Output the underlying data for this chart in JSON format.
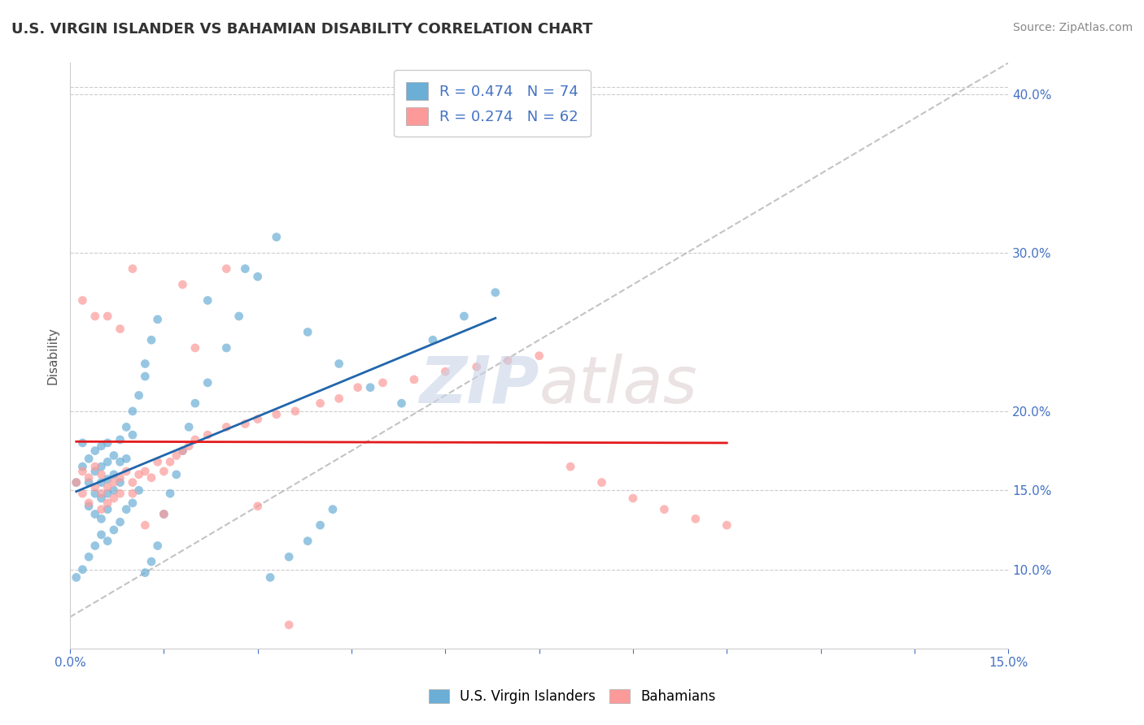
{
  "title": "U.S. VIRGIN ISLANDER VS BAHAMIAN DISABILITY CORRELATION CHART",
  "source_text": "Source: ZipAtlas.com",
  "xlabel": "",
  "ylabel": "Disability",
  "xlim": [
    0.0,
    0.15
  ],
  "ylim": [
    0.05,
    0.42
  ],
  "yticks_right": [
    0.1,
    0.15,
    0.2,
    0.3,
    0.4
  ],
  "ytick_right_labels": [
    "10.0%",
    "15.0%",
    "20.0%",
    "30.0%",
    "40.0%"
  ],
  "blue_color": "#6baed6",
  "pink_color": "#fb9a99",
  "blue_line_color": "#2166ac",
  "pink_line_color": "#e31a1c",
  "gray_line_color": "#aaaaaa",
  "legend_blue_R": "R = 0.474",
  "legend_blue_N": "N = 74",
  "legend_pink_R": "R = 0.274",
  "legend_pink_N": "N = 62",
  "watermark_zip": "ZIP",
  "watermark_atlas": "atlas",
  "blue_scatter_x": [
    0.001,
    0.002,
    0.002,
    0.003,
    0.003,
    0.003,
    0.004,
    0.004,
    0.004,
    0.004,
    0.005,
    0.005,
    0.005,
    0.005,
    0.005,
    0.006,
    0.006,
    0.006,
    0.006,
    0.006,
    0.007,
    0.007,
    0.007,
    0.008,
    0.008,
    0.008,
    0.009,
    0.009,
    0.01,
    0.01,
    0.011,
    0.012,
    0.012,
    0.013,
    0.014,
    0.015,
    0.016,
    0.017,
    0.018,
    0.019,
    0.02,
    0.022,
    0.025,
    0.027,
    0.03,
    0.032,
    0.035,
    0.038,
    0.04,
    0.042,
    0.001,
    0.002,
    0.003,
    0.004,
    0.005,
    0.006,
    0.007,
    0.008,
    0.009,
    0.01,
    0.011,
    0.012,
    0.013,
    0.014,
    0.022,
    0.028,
    0.033,
    0.038,
    0.043,
    0.048,
    0.053,
    0.058,
    0.063,
    0.068
  ],
  "blue_scatter_y": [
    0.155,
    0.18,
    0.165,
    0.17,
    0.155,
    0.14,
    0.175,
    0.162,
    0.148,
    0.135,
    0.178,
    0.165,
    0.155,
    0.145,
    0.132,
    0.18,
    0.168,
    0.157,
    0.148,
    0.138,
    0.172,
    0.16,
    0.15,
    0.182,
    0.168,
    0.155,
    0.19,
    0.17,
    0.2,
    0.185,
    0.21,
    0.222,
    0.23,
    0.245,
    0.258,
    0.135,
    0.148,
    0.16,
    0.175,
    0.19,
    0.205,
    0.218,
    0.24,
    0.26,
    0.285,
    0.095,
    0.108,
    0.118,
    0.128,
    0.138,
    0.095,
    0.1,
    0.108,
    0.115,
    0.122,
    0.118,
    0.125,
    0.13,
    0.138,
    0.142,
    0.15,
    0.098,
    0.105,
    0.115,
    0.27,
    0.29,
    0.31,
    0.25,
    0.23,
    0.215,
    0.205,
    0.245,
    0.26,
    0.275
  ],
  "pink_scatter_x": [
    0.001,
    0.002,
    0.002,
    0.003,
    0.003,
    0.004,
    0.004,
    0.005,
    0.005,
    0.005,
    0.006,
    0.006,
    0.007,
    0.007,
    0.008,
    0.008,
    0.009,
    0.01,
    0.01,
    0.011,
    0.012,
    0.013,
    0.014,
    0.015,
    0.016,
    0.017,
    0.018,
    0.019,
    0.02,
    0.022,
    0.025,
    0.028,
    0.03,
    0.033,
    0.036,
    0.04,
    0.043,
    0.046,
    0.05,
    0.055,
    0.06,
    0.065,
    0.07,
    0.075,
    0.08,
    0.085,
    0.09,
    0.095,
    0.1,
    0.105,
    0.002,
    0.004,
    0.006,
    0.008,
    0.01,
    0.012,
    0.015,
    0.018,
    0.02,
    0.025,
    0.03,
    0.035
  ],
  "pink_scatter_y": [
    0.155,
    0.148,
    0.162,
    0.158,
    0.142,
    0.165,
    0.152,
    0.16,
    0.148,
    0.138,
    0.152,
    0.142,
    0.155,
    0.145,
    0.158,
    0.148,
    0.162,
    0.155,
    0.148,
    0.16,
    0.162,
    0.158,
    0.168,
    0.162,
    0.168,
    0.172,
    0.175,
    0.178,
    0.182,
    0.185,
    0.19,
    0.192,
    0.195,
    0.198,
    0.2,
    0.205,
    0.208,
    0.215,
    0.218,
    0.22,
    0.225,
    0.228,
    0.232,
    0.235,
    0.165,
    0.155,
    0.145,
    0.138,
    0.132,
    0.128,
    0.27,
    0.26,
    0.26,
    0.252,
    0.29,
    0.128,
    0.135,
    0.28,
    0.24,
    0.29,
    0.14,
    0.065
  ]
}
